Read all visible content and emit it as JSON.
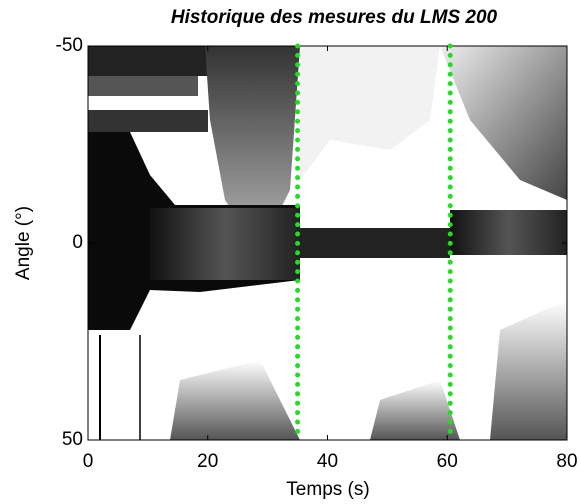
{
  "chart_data": {
    "type": "image",
    "title": "Historique des mesures du LMS 200",
    "xlabel": "Temps (s)",
    "ylabel": "Angle (°)",
    "xlim": [
      0,
      80
    ],
    "xticks": [
      0,
      20,
      40,
      60,
      80
    ],
    "ylim": [
      -50,
      50
    ],
    "yticks": [
      -50,
      0,
      50
    ],
    "y_reversed": true,
    "vlines": [
      35,
      60.5
    ],
    "vline_color": "#22dd22",
    "vline_style": "dotted"
  }
}
